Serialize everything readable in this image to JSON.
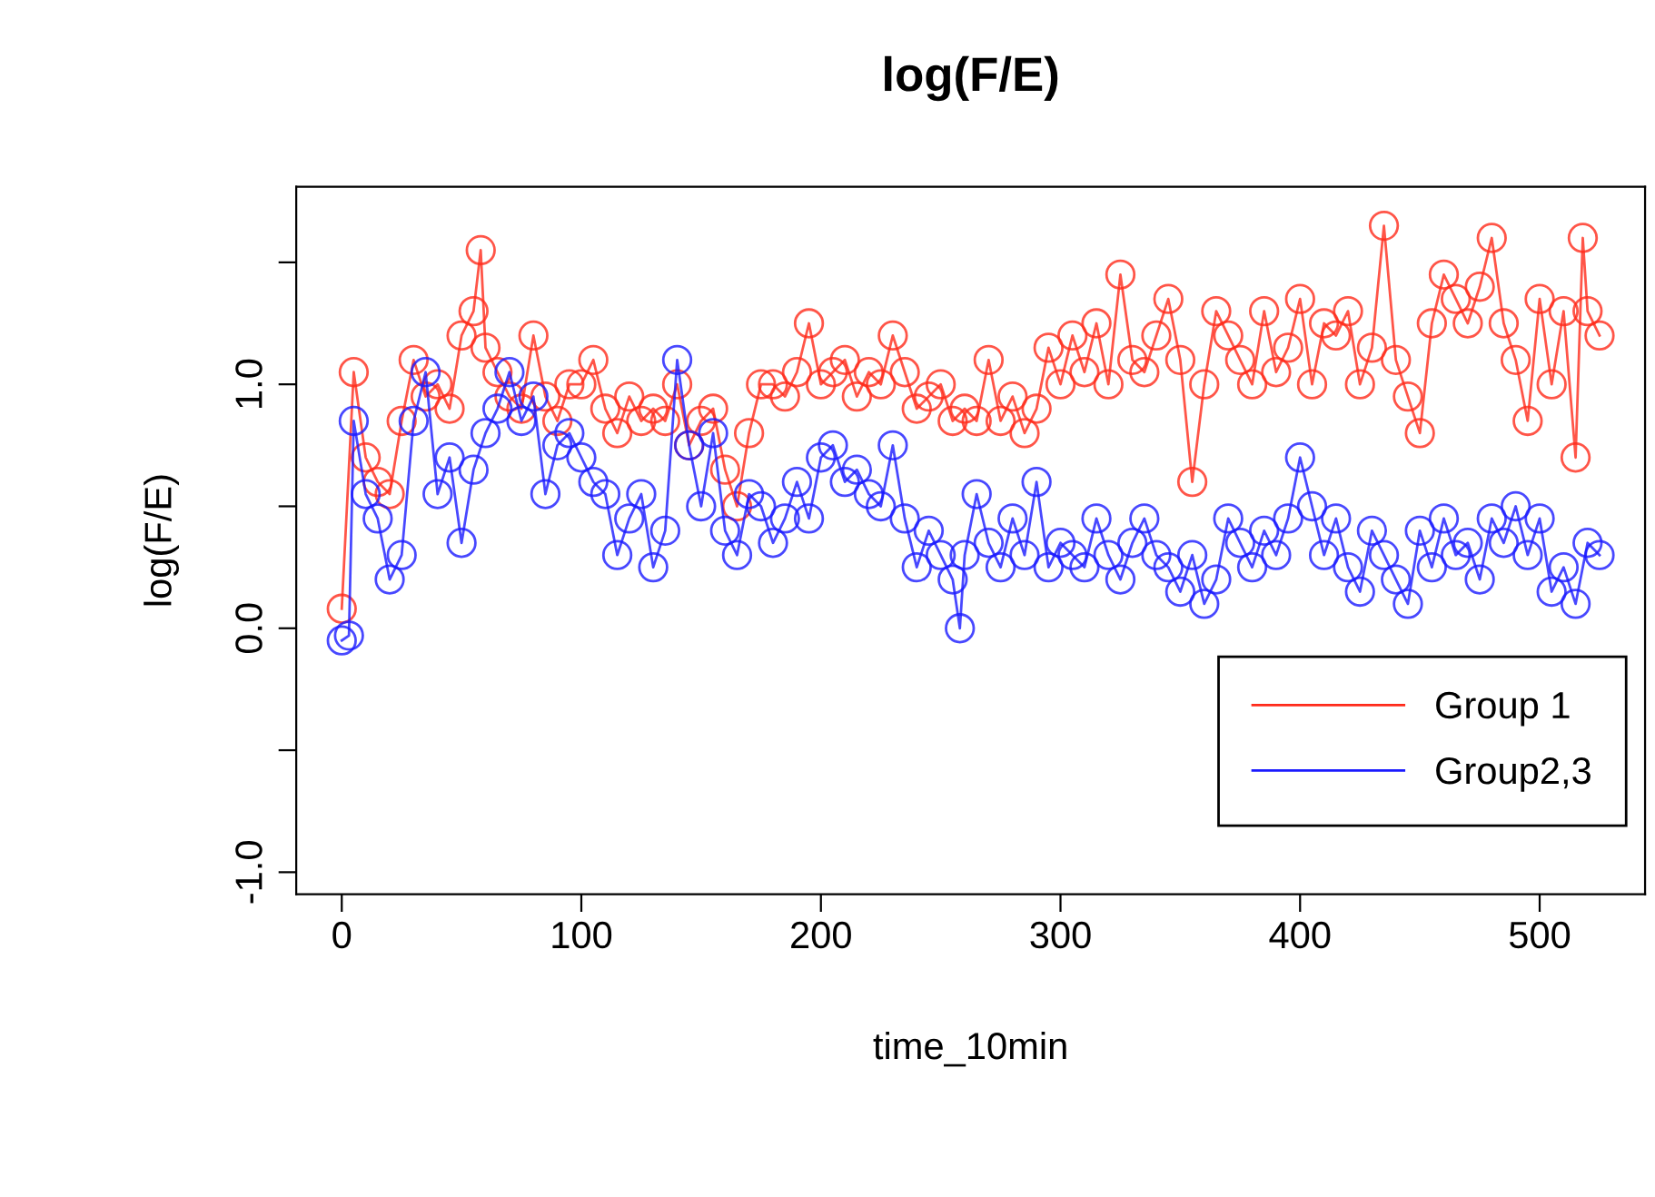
{
  "chart_data": {
    "type": "line",
    "title": "log(F/E)",
    "xlabel": "time_10min",
    "ylabel": "log(F/E)",
    "xlim": [
      -19,
      544
    ],
    "ylim": [
      -1.09,
      1.81
    ],
    "xticks": [
      0,
      100,
      200,
      300,
      400,
      500
    ],
    "yticks": [
      {
        "value": -1,
        "label": "-1.0"
      },
      {
        "value": -0.5,
        "label": null
      },
      {
        "value": 0,
        "label": "0.0"
      },
      {
        "value": 0.5,
        "label": null
      },
      {
        "value": 1,
        "label": "1.0"
      },
      {
        "value": 1.5,
        "label": null
      }
    ],
    "grid": false,
    "legend": "bottom right",
    "marker": "circle",
    "line_style": "solid",
    "series": [
      {
        "name": "Group 1",
        "color": "#ff2a1a",
        "x": [
          0,
          5,
          10,
          15,
          20,
          25,
          30,
          35,
          40,
          45,
          50,
          55,
          58,
          60,
          65,
          70,
          75,
          80,
          85,
          90,
          95,
          100,
          105,
          110,
          115,
          120,
          125,
          130,
          135,
          140,
          145,
          150,
          155,
          160,
          165,
          170,
          175,
          180,
          185,
          190,
          195,
          200,
          205,
          210,
          215,
          220,
          225,
          230,
          235,
          240,
          245,
          250,
          255,
          260,
          265,
          270,
          275,
          280,
          285,
          290,
          295,
          300,
          305,
          310,
          315,
          320,
          325,
          330,
          335,
          340,
          345,
          350,
          355,
          360,
          365,
          370,
          375,
          380,
          385,
          390,
          395,
          400,
          405,
          410,
          415,
          420,
          425,
          430,
          435,
          440,
          445,
          450,
          455,
          460,
          465,
          470,
          475,
          480,
          485,
          490,
          495,
          500,
          505,
          510,
          515,
          518,
          520,
          525
        ],
        "values": [
          0.08,
          1.05,
          0.7,
          0.6,
          0.55,
          0.85,
          1.1,
          0.95,
          1.0,
          0.9,
          1.2,
          1.3,
          1.55,
          1.15,
          1.05,
          0.95,
          0.9,
          1.2,
          0.95,
          0.85,
          1.0,
          1.0,
          1.1,
          0.9,
          0.8,
          0.95,
          0.85,
          0.9,
          0.85,
          1.0,
          0.75,
          0.85,
          0.9,
          0.65,
          0.5,
          0.8,
          1.0,
          1.0,
          0.95,
          1.05,
          1.25,
          1.0,
          1.05,
          1.1,
          0.95,
          1.05,
          1.0,
          1.2,
          1.05,
          0.9,
          0.95,
          1.0,
          0.85,
          0.9,
          0.85,
          1.1,
          0.85,
          0.95,
          0.8,
          0.9,
          1.15,
          1.0,
          1.2,
          1.05,
          1.25,
          1.0,
          1.45,
          1.1,
          1.05,
          1.2,
          1.35,
          1.1,
          0.6,
          1.0,
          1.3,
          1.2,
          1.1,
          1.0,
          1.3,
          1.05,
          1.15,
          1.35,
          1.0,
          1.25,
          1.2,
          1.3,
          1.0,
          1.15,
          1.65,
          1.1,
          0.95,
          0.8,
          1.25,
          1.45,
          1.35,
          1.25,
          1.4,
          1.6,
          1.25,
          1.1,
          0.85,
          1.35,
          1.0,
          1.3,
          0.7,
          1.6,
          1.3,
          1.2
        ]
      },
      {
        "name": "Group2,3",
        "color": "#1a1aff",
        "x": [
          0,
          3,
          5,
          10,
          15,
          20,
          25,
          30,
          35,
          40,
          45,
          50,
          55,
          60,
          65,
          70,
          75,
          80,
          85,
          90,
          95,
          100,
          105,
          110,
          115,
          120,
          125,
          130,
          135,
          140,
          145,
          150,
          155,
          160,
          165,
          170,
          175,
          180,
          185,
          190,
          195,
          200,
          205,
          210,
          215,
          220,
          225,
          230,
          235,
          240,
          245,
          250,
          255,
          258,
          260,
          265,
          270,
          275,
          280,
          285,
          290,
          295,
          300,
          305,
          310,
          315,
          320,
          325,
          330,
          335,
          340,
          345,
          350,
          355,
          360,
          365,
          370,
          375,
          380,
          385,
          390,
          395,
          400,
          405,
          410,
          415,
          420,
          425,
          430,
          435,
          440,
          445,
          450,
          455,
          460,
          465,
          470,
          475,
          480,
          485,
          490,
          495,
          500,
          505,
          510,
          515,
          520,
          525
        ],
        "values": [
          -0.05,
          -0.03,
          0.85,
          0.55,
          0.45,
          0.2,
          0.3,
          0.85,
          1.05,
          0.55,
          0.7,
          0.35,
          0.65,
          0.8,
          0.9,
          1.05,
          0.85,
          0.95,
          0.55,
          0.75,
          0.8,
          0.7,
          0.6,
          0.55,
          0.3,
          0.45,
          0.55,
          0.25,
          0.4,
          1.1,
          0.75,
          0.5,
          0.8,
          0.4,
          0.3,
          0.55,
          0.5,
          0.35,
          0.45,
          0.6,
          0.45,
          0.7,
          0.75,
          0.6,
          0.65,
          0.55,
          0.5,
          0.75,
          0.45,
          0.25,
          0.4,
          0.3,
          0.2,
          0.0,
          0.3,
          0.55,
          0.35,
          0.25,
          0.45,
          0.3,
          0.6,
          0.25,
          0.35,
          0.3,
          0.25,
          0.45,
          0.3,
          0.2,
          0.35,
          0.45,
          0.3,
          0.25,
          0.15,
          0.3,
          0.1,
          0.2,
          0.45,
          0.35,
          0.25,
          0.4,
          0.3,
          0.45,
          0.7,
          0.5,
          0.3,
          0.45,
          0.25,
          0.15,
          0.4,
          0.3,
          0.2,
          0.1,
          0.4,
          0.25,
          0.45,
          0.3,
          0.35,
          0.2,
          0.45,
          0.35,
          0.5,
          0.3,
          0.45,
          0.15,
          0.25,
          0.1,
          0.35,
          0.3
        ]
      }
    ]
  }
}
